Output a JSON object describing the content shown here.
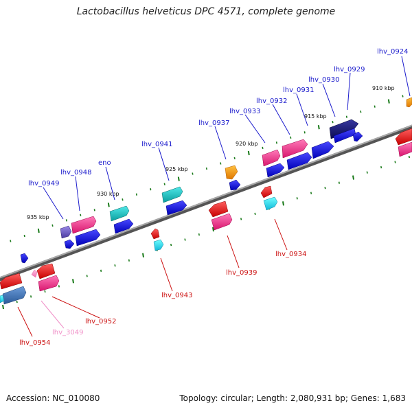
{
  "title": "Lactobacillus helveticus DPC 4571, complete genome",
  "footer": {
    "accession": "Accession: NC_010080",
    "topology": "Topology: circular; Length: 2,080,931 bp; Genes: 1,683"
  },
  "colors": {
    "backbone": "#808080",
    "forward_label": "#1a1acc",
    "reverse_label": "#cc1111",
    "pink_label": "#f090c8",
    "tick": "#1a7a1a"
  },
  "scale_labels": [
    "910 kbp",
    "915 kbp",
    "920 kbp",
    "925 kbp",
    "930 kbp",
    "935 kbp"
  ],
  "gene_labels": {
    "forward": [
      "lhv_0924",
      "lhv_0929",
      "lhv_0930",
      "lhv_0931",
      "lhv_0932",
      "lhv_0933",
      "lhv_0937",
      "lhv_0941",
      "eno",
      "lhv_0948",
      "lhv_0949"
    ],
    "reverse": [
      "lhv_0934",
      "lhv_0939",
      "lhv_0943",
      "lhv_0952",
      "lhv_3049",
      "lhv_0954"
    ]
  }
}
